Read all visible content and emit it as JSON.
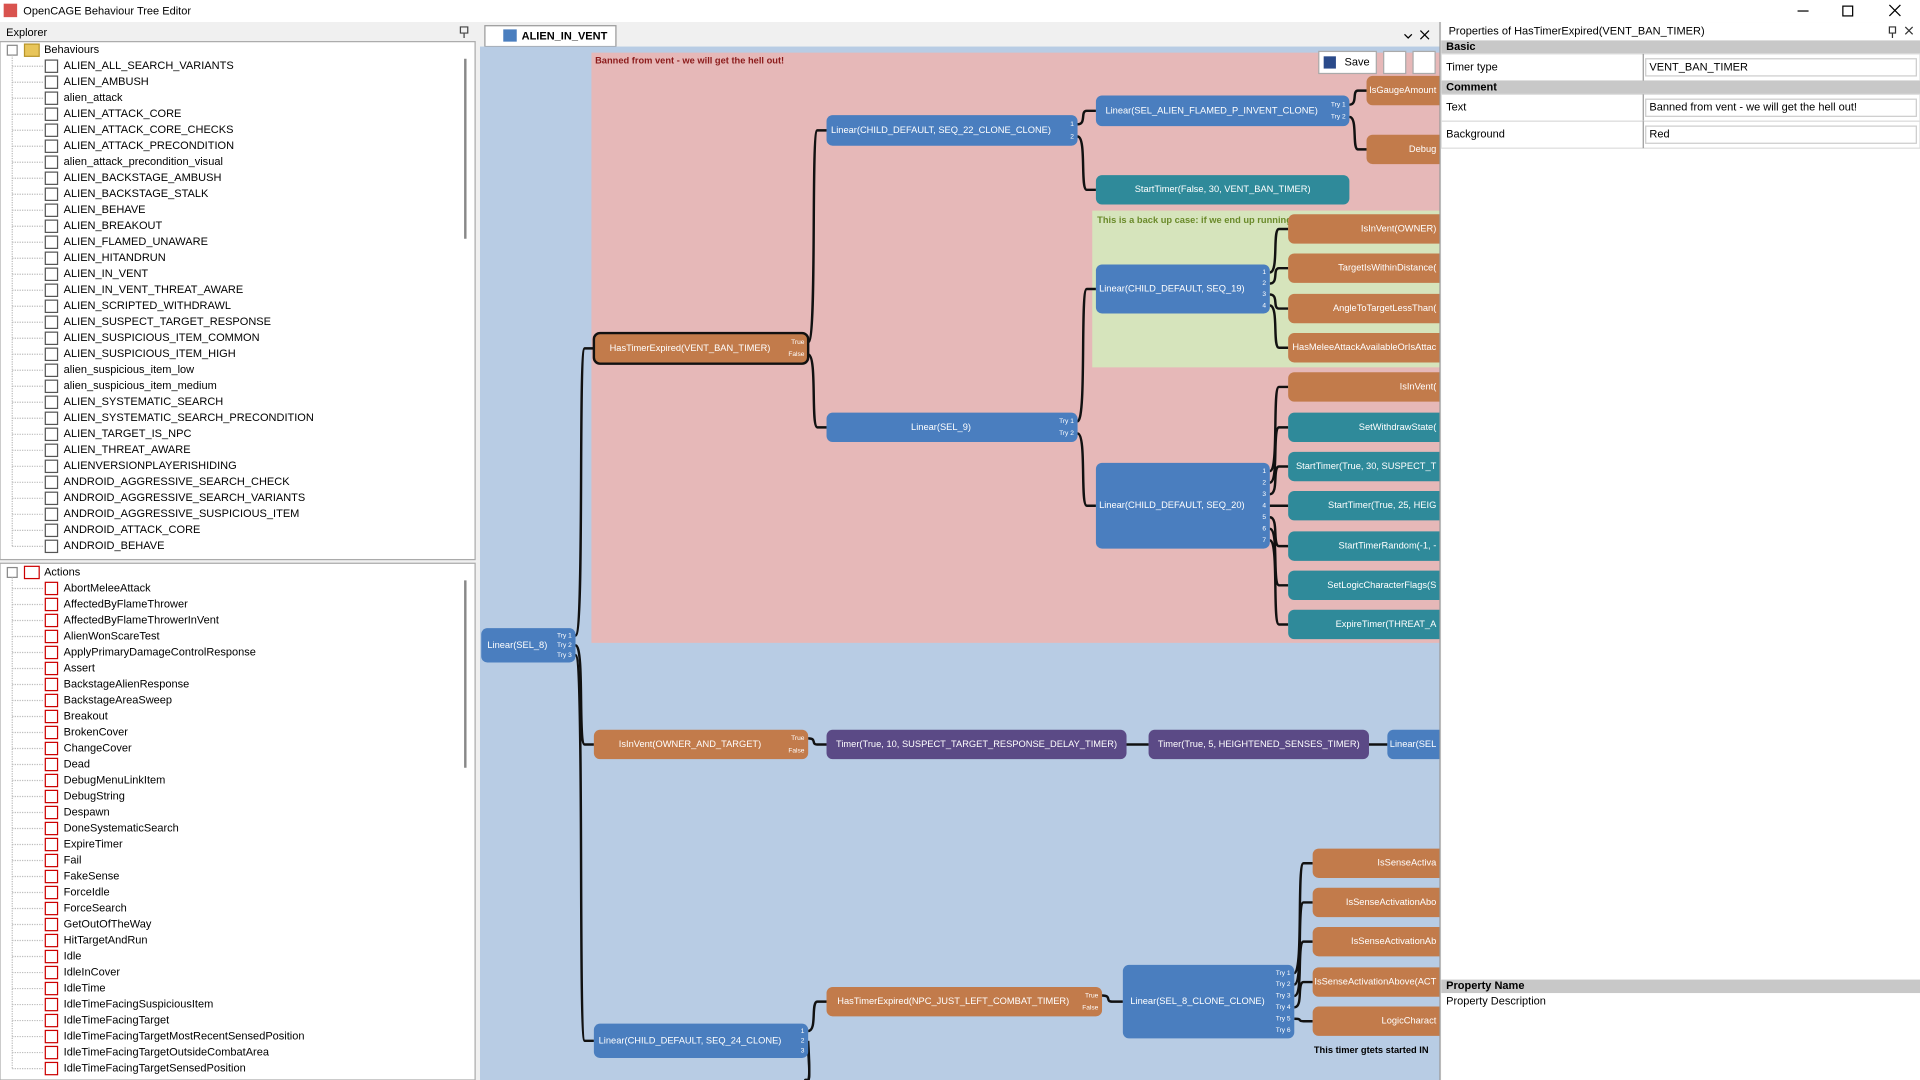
{
  "window": {
    "title": "OpenCAGE Behaviour Tree Editor"
  },
  "explorer": {
    "title": "Explorer",
    "behaviours": {
      "label": "Behaviours",
      "items": [
        "ALIEN_ALL_SEARCH_VARIANTS",
        "ALIEN_AMBUSH",
        "alien_attack",
        "ALIEN_ATTACK_CORE",
        "ALIEN_ATTACK_CORE_CHECKS",
        "ALIEN_ATTACK_PRECONDITION",
        "alien_attack_precondition_visual",
        "ALIEN_BACKSTAGE_AMBUSH",
        "ALIEN_BACKSTAGE_STALK",
        "ALIEN_BEHAVE",
        "ALIEN_BREAKOUT",
        "ALIEN_FLAMED_UNAWARE",
        "ALIEN_HITANDRUN",
        "ALIEN_IN_VENT",
        "ALIEN_IN_VENT_THREAT_AWARE",
        "ALIEN_SCRIPTED_WITHDRAWL",
        "ALIEN_SUSPECT_TARGET_RESPONSE",
        "ALIEN_SUSPICIOUS_ITEM_COMMON",
        "ALIEN_SUSPICIOUS_ITEM_HIGH",
        "alien_suspicious_item_low",
        "alien_suspicious_item_medium",
        "ALIEN_SYSTEMATIC_SEARCH",
        "ALIEN_SYSTEMATIC_SEARCH_PRECONDITION",
        "ALIEN_TARGET_IS_NPC",
        "ALIEN_THREAT_AWARE",
        "ALIENVERSIONPLAYERISHIDING",
        "ANDROID_AGGRESSIVE_SEARCH_CHECK",
        "ANDROID_AGGRESSIVE_SEARCH_VARIANTS",
        "ANDROID_AGGRESSIVE_SUSPICIOUS_ITEM",
        "ANDROID_ATTACK_CORE",
        "ANDROID_BEHAVE"
      ]
    },
    "actions": {
      "label": "Actions",
      "items": [
        "AbortMeleeAttack",
        "AffectedByFlameThrower",
        "AffectedByFlameThrowerInVent",
        "AlienWonScareTest",
        "ApplyPrimaryDamageControlResponse",
        "Assert",
        "BackstageAlienResponse",
        "BackstageAreaSweep",
        "Breakout",
        "BrokenCover",
        "ChangeCover",
        "Dead",
        "DebugMenuLinkItem",
        "DebugString",
        "Despawn",
        "DoneSystematicSearch",
        "ExpireTimer",
        "Fail",
        "FakeSense",
        "ForceIdle",
        "ForceSearch",
        "GetOutOfTheWay",
        "HitTargetAndRun",
        "Idle",
        "IdleInCover",
        "IdleTime",
        "IdleTimeFacingSuspiciousItem",
        "IdleTimeFacingTarget",
        "IdleTimeFacingTargetMostRecentSensedPosition",
        "IdleTimeFacingTargetOutsideCombatArea",
        "IdleTimeFacingTargetSensedPosition"
      ]
    }
  },
  "editor": {
    "tab": "ALIEN_IN_VENT",
    "save": "Save",
    "comments": [
      "Banned from vent - we will get the hell out!",
      "This is a back up case: if we end up running",
      "This timer gtets started IN"
    ],
    "nodes": [
      {
        "label": "Linear(SEL_8)",
        "ports": [
          "Try 1",
          "Try 2",
          "Try 3"
        ]
      },
      {
        "label": "HasTimerExpired(VENT_BAN_TIMER)",
        "ports": [
          "True",
          "False"
        ]
      },
      {
        "label": "Linear(CHILD_DEFAULT, SEQ_22_CLONE_CLONE)",
        "ports": [
          "1",
          "2"
        ]
      },
      {
        "label": "Linear(SEL_ALIEN_FLAMED_P_INVENT_CLONE)",
        "ports": [
          "Try 1",
          "Try 2"
        ]
      },
      {
        "label": "IsGaugeAmount"
      },
      {
        "label": "Debug"
      },
      {
        "label": "StartTimer(False, 30, VENT_BAN_TIMER)"
      },
      {
        "label": "Linear(CHILD_DEFAULT, SEQ_19)",
        "ports": [
          "1",
          "2",
          "3",
          "4"
        ]
      },
      {
        "label": "IsInVent(OWNER)"
      },
      {
        "label": "TargetIsWithinDistance("
      },
      {
        "label": "AngleToTargetLessThan("
      },
      {
        "label": "HasMeleeAttackAvailableOrIsAttac"
      },
      {
        "label": "Linear(SEL_9)",
        "ports": [
          "Try 1",
          "Try 2"
        ]
      },
      {
        "label": "Linear(CHILD_DEFAULT, SEQ_20)",
        "ports": [
          "1",
          "2",
          "3",
          "4",
          "5",
          "6",
          "7"
        ]
      },
      {
        "label": "IsInVent("
      },
      {
        "label": "SetWithdrawState("
      },
      {
        "label": "StartTimer(True, 30, SUSPECT_T"
      },
      {
        "label": "StartTimer(True, 25, HEIG"
      },
      {
        "label": "StartTimerRandom(-1, -"
      },
      {
        "label": "SetLogicCharacterFlags(S"
      },
      {
        "label": "ExpireTimer(THREAT_A"
      },
      {
        "label": "IsInVent(OWNER_AND_TARGET)",
        "ports": [
          "True",
          "False"
        ]
      },
      {
        "label": "Timer(True, 10, SUSPECT_TARGET_RESPONSE_DELAY_TIMER)"
      },
      {
        "label": "Timer(True, 5, HEIGHTENED_SENSES_TIMER)"
      },
      {
        "label": "Linear(SEL"
      },
      {
        "label": "Linear(CHILD_DEFAULT, SEQ_24_CLONE)",
        "ports": [
          "1",
          "2",
          "3"
        ]
      },
      {
        "label": "HasTimerExpired(NPC_JUST_LEFT_COMBAT_TIMER)",
        "ports": [
          "True",
          "False"
        ]
      },
      {
        "label": "Linear(SEL_8_CLONE_CLONE)",
        "ports": [
          "Try 1",
          "Try 2",
          "Try 3",
          "Try 4",
          "Try 5",
          "Try 6"
        ]
      },
      {
        "label": "IsSenseActiva"
      },
      {
        "label": "IsSenseActivationAbo"
      },
      {
        "label": "IsSenseActivationAb"
      },
      {
        "label": "IsSenseActivationAbove(ACT"
      },
      {
        "label": "LogicCharact"
      }
    ]
  },
  "properties": {
    "title": "Properties of HasTimerExpired(VENT_BAN_TIMER)",
    "sections": [
      {
        "name": "Basic",
        "rows": [
          {
            "label": "Timer type",
            "value": "VENT_BAN_TIMER"
          }
        ]
      },
      {
        "name": "Comment",
        "rows": [
          {
            "label": "Text",
            "value": "Banned from vent - we will get the hell out!"
          },
          {
            "label": "Background",
            "value": "Red"
          }
        ]
      }
    ],
    "description": {
      "name": "Property Name",
      "text": "Property Description"
    }
  }
}
